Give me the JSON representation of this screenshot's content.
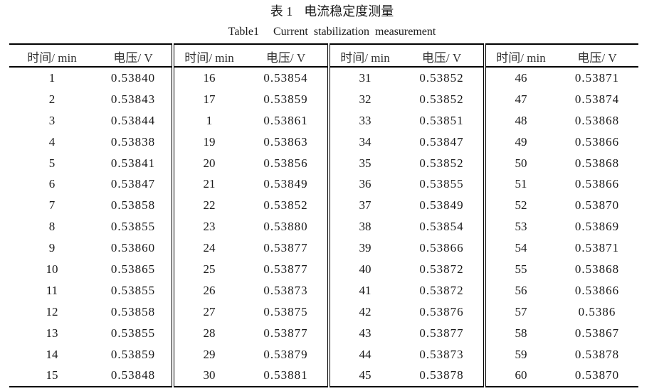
{
  "caption": {
    "label": "表 1",
    "title": "电流稳定度测量"
  },
  "subcaption": {
    "label": "Table1",
    "title": "Current  stabilization  measurement"
  },
  "headers": {
    "time": "时间/ min",
    "voltage": "电压/ V"
  },
  "groups": [
    [
      [
        "1",
        "0.53840"
      ],
      [
        "2",
        "0.53843"
      ],
      [
        "3",
        "0.53844"
      ],
      [
        "4",
        "0.53838"
      ],
      [
        "5",
        "0.53841"
      ],
      [
        "6",
        "0.53847"
      ],
      [
        "7",
        "0.53858"
      ],
      [
        "8",
        "0.53855"
      ],
      [
        "9",
        "0.53860"
      ],
      [
        "10",
        "0.53865"
      ],
      [
        "11",
        "0.53855"
      ],
      [
        "12",
        "0.53858"
      ],
      [
        "13",
        "0.53855"
      ],
      [
        "14",
        "0.53859"
      ],
      [
        "15",
        "0.53848"
      ]
    ],
    [
      [
        "16",
        "0.53854"
      ],
      [
        "17",
        "0.53859"
      ],
      [
        "1",
        "0.53861"
      ],
      [
        "19",
        "0.53863"
      ],
      [
        "20",
        "0.53856"
      ],
      [
        "21",
        "0.53849"
      ],
      [
        "22",
        "0.53852"
      ],
      [
        "23",
        "0.53880"
      ],
      [
        "24",
        "0.53877"
      ],
      [
        "25",
        "0.53877"
      ],
      [
        "26",
        "0.53873"
      ],
      [
        "27",
        "0.53875"
      ],
      [
        "28",
        "0.53877"
      ],
      [
        "29",
        "0.53879"
      ],
      [
        "30",
        "0.53881"
      ]
    ],
    [
      [
        "31",
        "0.53852"
      ],
      [
        "32",
        "0.53852"
      ],
      [
        "33",
        "0.53851"
      ],
      [
        "34",
        "0.53847"
      ],
      [
        "35",
        "0.53852"
      ],
      [
        "36",
        "0.53855"
      ],
      [
        "37",
        "0.53849"
      ],
      [
        "38",
        "0.53854"
      ],
      [
        "39",
        "0.53866"
      ],
      [
        "40",
        "0.53872"
      ],
      [
        "41",
        "0.53872"
      ],
      [
        "42",
        "0.53876"
      ],
      [
        "43",
        "0.53877"
      ],
      [
        "44",
        "0.53873"
      ],
      [
        "45",
        "0.53878"
      ]
    ],
    [
      [
        "46",
        "0.53871"
      ],
      [
        "47",
        "0.53874"
      ],
      [
        "48",
        "0.53868"
      ],
      [
        "49",
        "0.53866"
      ],
      [
        "50",
        "0.53868"
      ],
      [
        "51",
        "0.53866"
      ],
      [
        "52",
        "0.53870"
      ],
      [
        "53",
        "0.53869"
      ],
      [
        "54",
        "0.53871"
      ],
      [
        "55",
        "0.53868"
      ],
      [
        "56",
        "0.53866"
      ],
      [
        "57",
        "0.5386"
      ],
      [
        "58",
        "0.53867"
      ],
      [
        "59",
        "0.53878"
      ],
      [
        "60",
        "0.53870"
      ]
    ]
  ]
}
